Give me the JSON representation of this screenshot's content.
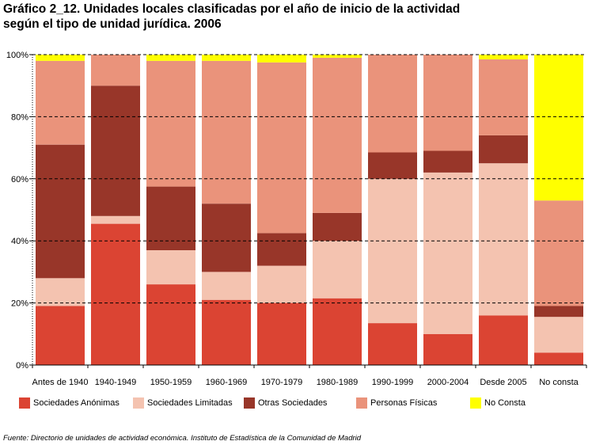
{
  "chart_data": {
    "type": "bar",
    "stacked": true,
    "normalized": true,
    "title": "Gráfico 2_12. Unidades locales clasificadas por el año de inicio de la actividad",
    "subtitle": "según el tipo de unidad jurídica. 2006",
    "categories": [
      "Antes de 1940",
      "1940-1949",
      "1950-1959",
      "1960-1969",
      "1970-1979",
      "1980-1989",
      "1990-1999",
      "2000-2004",
      "Desde 2005",
      "No consta"
    ],
    "ylim": [
      0,
      100
    ],
    "yticks": [
      "0%",
      "20%",
      "40%",
      "60%",
      "80%",
      "100%"
    ],
    "grid": true,
    "legend_position": "bottom",
    "series": [
      {
        "name": "Sociedades Anónimas",
        "color": "#db4433",
        "values": [
          19,
          45.5,
          26,
          21,
          20,
          21.5,
          13.5,
          10,
          16,
          4
        ]
      },
      {
        "name": "Sociedades Limitadas",
        "color": "#f4c3b0",
        "values": [
          9,
          2.5,
          11,
          9,
          12,
          18.5,
          46.5,
          52,
          49,
          11.5
        ]
      },
      {
        "name": "Otras Sociedades",
        "color": "#983629",
        "values": [
          43,
          42,
          20.5,
          22,
          10.5,
          9,
          8.5,
          7,
          9,
          3.5
        ]
      },
      {
        "name": "Personas Físicas",
        "color": "#ea937b",
        "values": [
          27,
          10,
          40.5,
          46,
          55,
          50,
          31.5,
          31,
          24.5,
          34
        ]
      },
      {
        "name": "No Consta",
        "color": "#ffff00",
        "values": [
          2,
          0,
          2,
          2,
          2.5,
          1,
          0,
          0,
          1.5,
          47
        ]
      }
    ]
  },
  "source": "Fuente: Directorio de unidades de actividad económica. Instituto de Estadística de la Comunidad de Madrid"
}
